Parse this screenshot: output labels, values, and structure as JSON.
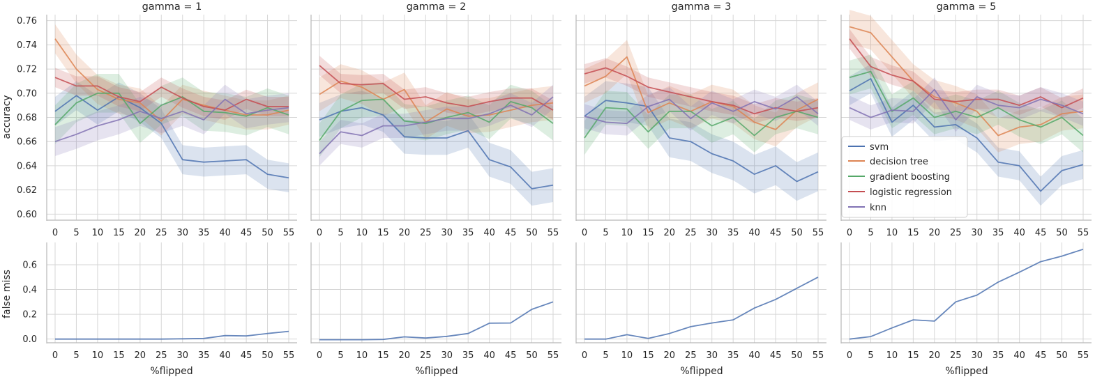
{
  "chart_data": {
    "type": "line",
    "x": [
      0,
      5,
      10,
      15,
      20,
      25,
      30,
      35,
      40,
      45,
      50,
      55
    ],
    "xlabel": "%flipped",
    "top_row": {
      "ylabel": "accuracy",
      "ylim": [
        0.595,
        0.765
      ],
      "yticks": [
        "0.60",
        "0.62",
        "0.64",
        "0.66",
        "0.68",
        "0.70",
        "0.72",
        "0.74",
        "0.76"
      ]
    },
    "bottom_row": {
      "ylabel": "false miss",
      "ylim": [
        -0.03,
        0.78
      ],
      "yticks": [
        "0.0",
        "0.2",
        "0.4",
        "0.6"
      ]
    },
    "grid": true,
    "legend_position": "lower-right of fourth accuracy panel",
    "series_colors": {
      "svm": "#4c72b0",
      "decision tree": "#dd8452",
      "gradient boosting": "#55a868",
      "logistic regression": "#c44e52",
      "knn": "#8172b3"
    },
    "legend": [
      "svm",
      "decision tree",
      "gradient boosting",
      "logistic regression",
      "knn"
    ],
    "panels": [
      {
        "title": "gamma = 1",
        "accuracy": [
          {
            "name": "svm",
            "values": [
              0.685,
              0.698,
              0.686,
              0.697,
              0.688,
              0.675,
              0.645,
              0.643,
              0.644,
              0.645,
              0.633,
              0.63
            ],
            "band": 0.012
          },
          {
            "name": "decision tree",
            "values": [
              0.745,
              0.72,
              0.703,
              0.695,
              0.692,
              0.677,
              0.695,
              0.69,
              0.686,
              0.682,
              0.682,
              0.686
            ],
            "band": 0.012
          },
          {
            "name": "gradient boosting",
            "values": [
              0.674,
              0.692,
              0.7,
              0.7,
              0.675,
              0.69,
              0.697,
              0.685,
              0.684,
              0.681,
              0.688,
              0.682
            ],
            "band": 0.016
          },
          {
            "name": "logistic regression",
            "values": [
              0.713,
              0.706,
              0.706,
              0.697,
              0.693,
              0.705,
              0.696,
              0.689,
              0.686,
              0.695,
              0.689,
              0.689
            ],
            "band": 0.008
          },
          {
            "name": "knn",
            "values": [
              0.66,
              0.666,
              0.673,
              0.678,
              0.685,
              0.679,
              0.685,
              0.678,
              0.695,
              0.683,
              0.686,
              0.688
            ],
            "band": 0.012
          }
        ],
        "false_miss": [
          0.0,
          0.0,
          0.0,
          0.0,
          0.0,
          0.0,
          0.002,
          0.005,
          0.028,
          0.025,
          0.045,
          0.062
        ]
      },
      {
        "title": "gamma = 2",
        "accuracy": [
          {
            "name": "svm",
            "values": [
              0.678,
              0.685,
              0.688,
              0.682,
              0.664,
              0.663,
              0.663,
              0.669,
              0.645,
              0.639,
              0.621,
              0.624
            ],
            "band": 0.014
          },
          {
            "name": "decision tree",
            "values": [
              0.699,
              0.71,
              0.705,
              0.695,
              0.703,
              0.676,
              0.687,
              0.681,
              0.682,
              0.686,
              0.69,
              0.692
            ],
            "band": 0.014
          },
          {
            "name": "gradient boosting",
            "values": [
              0.661,
              0.685,
              0.694,
              0.695,
              0.677,
              0.675,
              0.68,
              0.684,
              0.676,
              0.693,
              0.688,
              0.675
            ],
            "band": 0.014
          },
          {
            "name": "logistic regression",
            "values": [
              0.723,
              0.708,
              0.707,
              0.708,
              0.695,
              0.697,
              0.692,
              0.689,
              0.693,
              0.696,
              0.696,
              0.686
            ],
            "band": 0.008
          },
          {
            "name": "knn",
            "values": [
              0.65,
              0.668,
              0.665,
              0.673,
              0.673,
              0.676,
              0.679,
              0.679,
              0.683,
              0.69,
              0.682,
              0.697
            ],
            "band": 0.01
          }
        ],
        "false_miss": [
          -0.005,
          -0.005,
          -0.005,
          -0.003,
          0.018,
          0.008,
          0.022,
          0.045,
          0.128,
          0.13,
          0.24,
          0.3
        ]
      },
      {
        "title": "gamma = 3",
        "accuracy": [
          {
            "name": "svm",
            "values": [
              0.681,
              0.694,
              0.692,
              0.689,
              0.663,
              0.66,
              0.65,
              0.644,
              0.633,
              0.64,
              0.627,
              0.635
            ],
            "band": 0.016
          },
          {
            "name": "decision tree",
            "values": [
              0.706,
              0.714,
              0.73,
              0.684,
              0.692,
              0.685,
              0.693,
              0.689,
              0.676,
              0.67,
              0.686,
              0.695
            ],
            "band": 0.014
          },
          {
            "name": "gradient boosting",
            "values": [
              0.663,
              0.688,
              0.687,
              0.668,
              0.685,
              0.685,
              0.673,
              0.68,
              0.665,
              0.68,
              0.685,
              0.68
            ],
            "band": 0.014
          },
          {
            "name": "logistic regression",
            "values": [
              0.716,
              0.721,
              0.714,
              0.705,
              0.701,
              0.697,
              0.693,
              0.69,
              0.683,
              0.688,
              0.685,
              0.688
            ],
            "band": 0.008
          },
          {
            "name": "knn",
            "values": [
              0.681,
              0.676,
              0.675,
              0.689,
              0.695,
              0.679,
              0.692,
              0.685,
              0.693,
              0.687,
              0.697,
              0.683
            ],
            "band": 0.01
          }
        ],
        "false_miss": [
          0.0,
          0.0,
          0.035,
          0.005,
          0.045,
          0.1,
          0.13,
          0.155,
          0.25,
          0.32,
          0.41,
          0.5
        ]
      },
      {
        "title": "gamma = 5",
        "accuracy": [
          {
            "name": "svm",
            "values": [
              0.702,
              0.712,
              0.676,
              0.69,
              0.672,
              0.674,
              0.663,
              0.643,
              0.64,
              0.619,
              0.636,
              0.641
            ],
            "band": 0.012
          },
          {
            "name": "decision tree",
            "values": [
              0.755,
              0.75,
              0.73,
              0.71,
              0.697,
              0.692,
              0.685,
              0.665,
              0.672,
              0.674,
              0.683,
              0.685
            ],
            "band": 0.014
          },
          {
            "name": "gradient boosting",
            "values": [
              0.713,
              0.718,
              0.685,
              0.696,
              0.68,
              0.685,
              0.68,
              0.688,
              0.678,
              0.672,
              0.68,
              0.665
            ],
            "band": 0.014
          },
          {
            "name": "logistic regression",
            "values": [
              0.745,
              0.722,
              0.715,
              0.71,
              0.695,
              0.693,
              0.695,
              0.695,
              0.69,
              0.697,
              0.688,
              0.696
            ],
            "band": 0.008
          },
          {
            "name": "knn",
            "values": [
              0.688,
              0.68,
              0.686,
              0.685,
              0.703,
              0.678,
              0.697,
              0.69,
              0.688,
              0.695,
              0.69,
              0.683
            ],
            "band": 0.01
          }
        ],
        "false_miss": [
          0.0,
          0.02,
          0.09,
          0.155,
          0.145,
          0.3,
          0.355,
          0.46,
          0.54,
          0.625,
          0.67,
          0.725
        ]
      }
    ]
  }
}
